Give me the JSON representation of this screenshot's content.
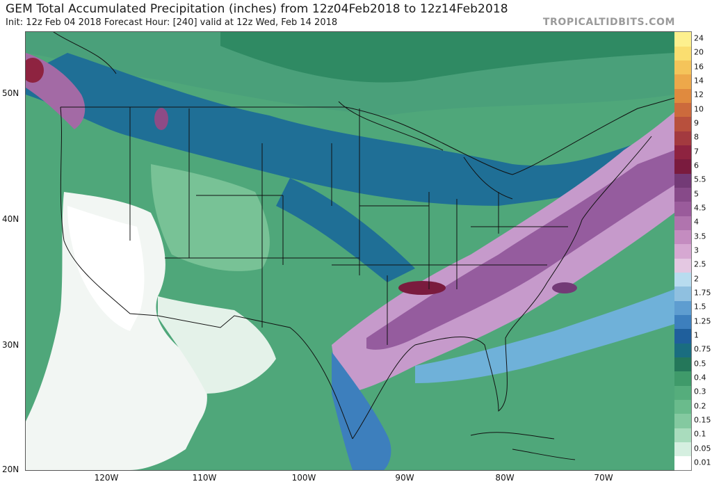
{
  "header": {
    "title": "GEM Total Accumulated Precipitation (inches) from 12z04Feb2018 to 12z14Feb2018",
    "subtitle": "Init: 12z Feb 04 2018   Forecast Hour: [240]   valid at 12z Wed, Feb 14 2018",
    "brand": "TROPICALTIDBITS.COM"
  },
  "map": {
    "lat_labels": [
      "50N",
      "40N",
      "30N",
      "20N"
    ],
    "lon_labels": [
      "120W",
      "110W",
      "100W",
      "90W",
      "80W",
      "70W"
    ]
  },
  "legend": {
    "units": "inches",
    "levels": [
      {
        "label": "0.01",
        "color": "#ffffff"
      },
      {
        "label": "0.05",
        "color": "#d5efe0"
      },
      {
        "label": "0.1",
        "color": "#a9dcbd"
      },
      {
        "label": "0.15",
        "color": "#84c9a0"
      },
      {
        "label": "0.2",
        "color": "#6abb8c"
      },
      {
        "label": "0.3",
        "color": "#55ad7c"
      },
      {
        "label": "0.4",
        "color": "#3f9a6a"
      },
      {
        "label": "0.5",
        "color": "#24775a"
      },
      {
        "label": "0.75",
        "color": "#1a6d80"
      },
      {
        "label": "1",
        "color": "#1f5f9c"
      },
      {
        "label": "1.25",
        "color": "#3d7fbd"
      },
      {
        "label": "1.5",
        "color": "#5e9dd0"
      },
      {
        "label": "1.75",
        "color": "#8fc0e0"
      },
      {
        "label": "2",
        "color": "#b8dcef"
      },
      {
        "label": "2.5",
        "color": "#e4c8e2"
      },
      {
        "label": "3",
        "color": "#d6a8d2"
      },
      {
        "label": "3.5",
        "color": "#c48cc0"
      },
      {
        "label": "4",
        "color": "#b074ae"
      },
      {
        "label": "4.5",
        "color": "#9a5b9b"
      },
      {
        "label": "5",
        "color": "#874a89"
      },
      {
        "label": "5.5",
        "color": "#733a76"
      },
      {
        "label": "6",
        "color": "#7a1b3e"
      },
      {
        "label": "7",
        "color": "#8e2340"
      },
      {
        "label": "8",
        "color": "#a33a3f"
      },
      {
        "label": "9",
        "color": "#b8503d"
      },
      {
        "label": "10",
        "color": "#cc6a3c"
      },
      {
        "label": "12",
        "color": "#e08a3e"
      },
      {
        "label": "14",
        "color": "#eda84a"
      },
      {
        "label": "16",
        "color": "#f5c45a"
      },
      {
        "label": "20",
        "color": "#fade70"
      },
      {
        "label": "24",
        "color": "#fdf08e"
      }
    ]
  }
}
